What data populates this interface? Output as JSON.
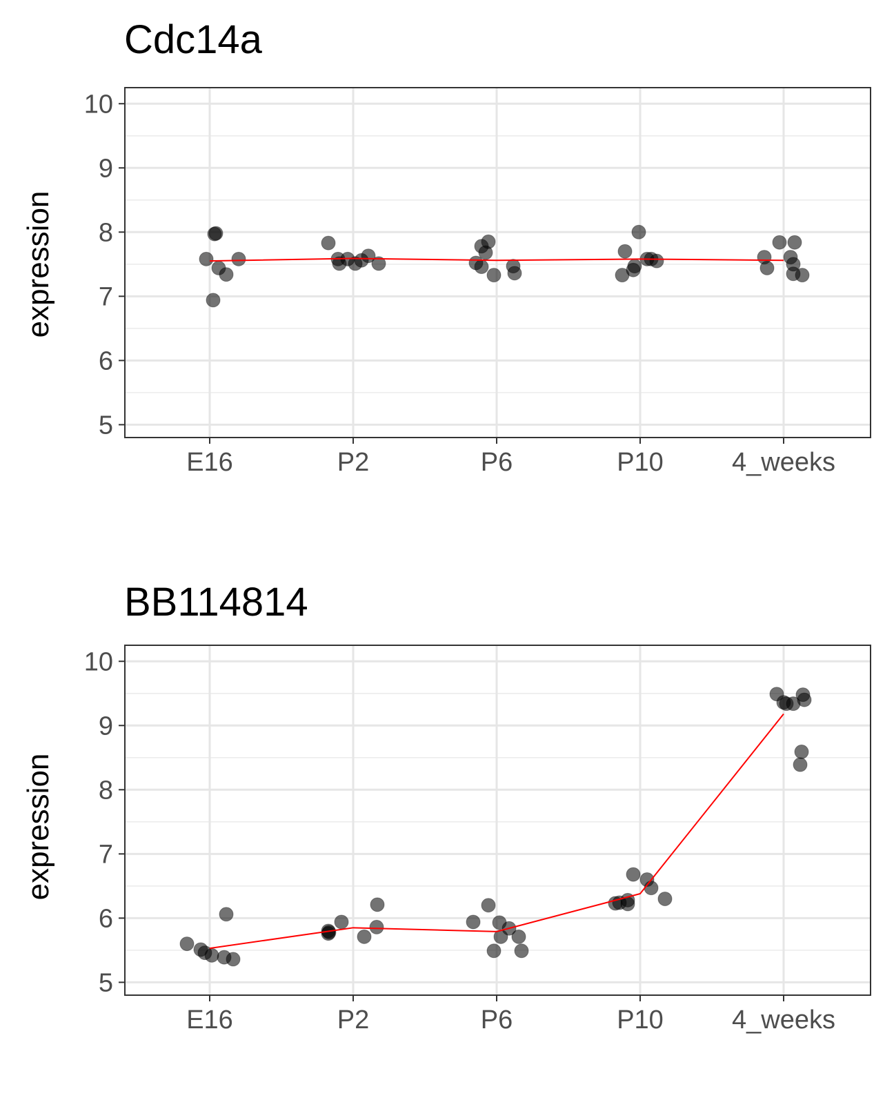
{
  "chart_data": [
    {
      "type": "scatter",
      "title": "Cdc14a",
      "xlabel": "",
      "ylabel": "expression",
      "categories": [
        "E16",
        "P2",
        "P6",
        "P10",
        "4_weeks"
      ],
      "ylim": [
        4.8,
        10.25
      ],
      "yticks": [
        5,
        6,
        7,
        8,
        9,
        10
      ],
      "grid": true,
      "points": {
        "E16": [
          7.98,
          7.97,
          7.58,
          7.44,
          7.34,
          7.58,
          6.94
        ],
        "P2": [
          7.83,
          7.58,
          7.51,
          7.58,
          7.51,
          7.56,
          7.63,
          7.51
        ],
        "P6": [
          7.85,
          7.78,
          7.68,
          7.52,
          7.46,
          7.47,
          7.33,
          7.36
        ],
        "P10": [
          8.0,
          7.7,
          7.47,
          7.41,
          7.33,
          7.58,
          7.58,
          7.55
        ],
        "4_weeks": [
          7.84,
          7.84,
          7.61,
          7.61,
          7.44,
          7.35,
          7.5,
          7.33
        ]
      },
      "mean_line": [
        7.55,
        7.59,
        7.56,
        7.58,
        7.56
      ]
    },
    {
      "type": "scatter",
      "title": "BB114814",
      "xlabel": "",
      "ylabel": "expression",
      "categories": [
        "E16",
        "P2",
        "P6",
        "P10",
        "4_weeks"
      ],
      "ylim": [
        4.8,
        10.25
      ],
      "yticks": [
        5,
        6,
        7,
        8,
        9,
        10
      ],
      "grid": true,
      "points": {
        "E16": [
          5.6,
          5.51,
          5.46,
          5.42,
          5.39,
          5.36,
          6.06
        ],
        "P2": [
          5.8,
          5.76,
          5.78,
          5.94,
          5.71,
          5.86,
          6.21
        ],
        "P6": [
          5.94,
          6.2,
          5.93,
          5.84,
          5.71,
          5.49,
          5.71,
          5.49
        ],
        "P10": [
          6.23,
          6.24,
          6.28,
          6.22,
          6.68,
          6.6,
          6.47,
          6.3
        ],
        "4_weeks": [
          9.49,
          9.36,
          9.34,
          9.34,
          9.48,
          9.4,
          8.59,
          8.39
        ]
      },
      "mean_line": [
        5.53,
        5.85,
        5.79,
        6.38,
        9.18
      ]
    }
  ]
}
